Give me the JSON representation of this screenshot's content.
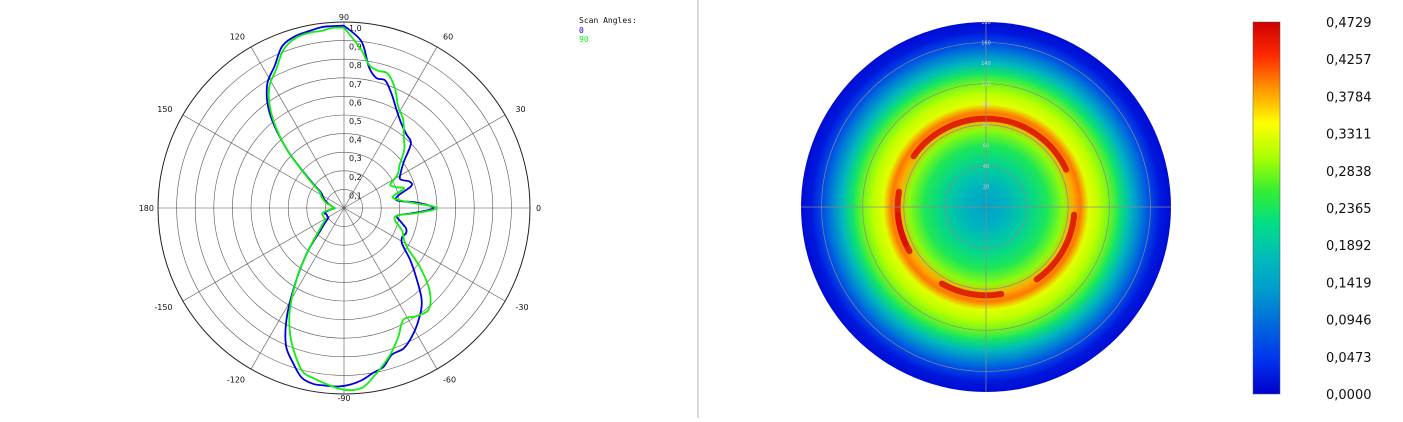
{
  "chart_data": [
    {
      "type": "line",
      "projection": "polar",
      "radial_ticks": [
        "0,1",
        "0,2",
        "0,3",
        "0,4",
        "0,5",
        "0,6",
        "0,7",
        "0,8",
        "0,9",
        "1,0"
      ],
      "rlim": [
        0,
        1
      ],
      "angular_ticks": [
        "0",
        "30",
        "60",
        "90",
        "120",
        "150",
        "180",
        "-150",
        "-120",
        "-90",
        "-60",
        "-30"
      ],
      "grid": true,
      "legend": {
        "title": "Scan Angles:",
        "placement": "top-right"
      },
      "series": [
        {
          "name": "0",
          "color": "#0000dd",
          "angles": [
            90,
            84,
            80,
            76,
            72,
            67,
            62,
            56,
            50,
            44,
            38,
            32,
            27,
            22,
            18,
            13,
            8,
            4,
            0,
            -4,
            -8,
            -13,
            -18,
            -22,
            -27,
            -32,
            -38,
            -44,
            -50,
            -56,
            -62,
            -67,
            -72,
            -76,
            -80,
            -84,
            -88,
            -92,
            -96,
            -100,
            -104,
            -108,
            -113,
            -118,
            -124,
            -130,
            -136,
            -142,
            -148,
            -154,
            -160,
            -166,
            -170,
            -174,
            -178,
            176,
            170,
            164,
            158,
            152,
            146,
            140,
            134,
            128,
            122,
            116,
            111,
            106,
            101,
            97,
            94,
            90
          ],
          "values": [
            0.98,
            0.9,
            0.77,
            0.72,
            0.72,
            0.66,
            0.6,
            0.55,
            0.52,
            0.5,
            0.41,
            0.36,
            0.34,
            0.38,
            0.38,
            0.3,
            0.29,
            0.4,
            0.48,
            0.38,
            0.29,
            0.31,
            0.35,
            0.36,
            0.35,
            0.37,
            0.45,
            0.54,
            0.65,
            0.72,
            0.78,
            0.82,
            0.83,
            0.88,
            0.9,
            0.93,
            0.95,
            0.96,
            0.96,
            0.96,
            0.94,
            0.88,
            0.8,
            0.65,
            0.45,
            0.3,
            0.18,
            0.13,
            0.1,
            0.1,
            0.1,
            0.11,
            0.09,
            0.07,
            0.05,
            0.06,
            0.07,
            0.09,
            0.11,
            0.13,
            0.15,
            0.25,
            0.45,
            0.65,
            0.78,
            0.85,
            0.93,
            0.96,
            0.97,
            0.98,
            0.98,
            0.98
          ]
        },
        {
          "name": "90",
          "color": "#11ee11",
          "angles": [
            90,
            84,
            80,
            76,
            72,
            67,
            62,
            56,
            50,
            44,
            38,
            32,
            27,
            22,
            18,
            13,
            8,
            4,
            0,
            -4,
            -8,
            -13,
            -18,
            -22,
            -27,
            -32,
            -38,
            -44,
            -50,
            -56,
            -62,
            -67,
            -72,
            -76,
            -80,
            -84,
            -88,
            -92,
            -96,
            -100,
            -104,
            -108,
            -113,
            -118,
            -124,
            -130,
            -136,
            -142,
            -148,
            -154,
            -160,
            -166,
            -170,
            -174,
            -178,
            176,
            170,
            164,
            158,
            152,
            146,
            140,
            134,
            128,
            122,
            116,
            111,
            106,
            101,
            97,
            94,
            90
          ],
          "values": [
            0.97,
            0.86,
            0.78,
            0.76,
            0.76,
            0.7,
            0.62,
            0.57,
            0.5,
            0.45,
            0.38,
            0.34,
            0.28,
            0.3,
            0.34,
            0.27,
            0.3,
            0.38,
            0.5,
            0.39,
            0.29,
            0.28,
            0.31,
            0.34,
            0.36,
            0.4,
            0.52,
            0.64,
            0.71,
            0.7,
            0.68,
            0.75,
            0.82,
            0.87,
            0.92,
            0.97,
            0.98,
            0.97,
            0.95,
            0.93,
            0.91,
            0.84,
            0.74,
            0.62,
            0.45,
            0.3,
            0.2,
            0.15,
            0.12,
            0.12,
            0.12,
            0.12,
            0.1,
            0.07,
            0.05,
            0.06,
            0.07,
            0.1,
            0.12,
            0.14,
            0.16,
            0.26,
            0.45,
            0.63,
            0.76,
            0.83,
            0.91,
            0.95,
            0.96,
            0.96,
            0.97,
            0.97
          ]
        }
      ]
    },
    {
      "type": "heatmap",
      "projection": "polar",
      "radial_ticks": [
        "20",
        "40",
        "60",
        "80",
        "100",
        "120",
        "140",
        "160",
        "180"
      ],
      "colorbar": {
        "ticks": [
          "0,4729",
          "0,4257",
          "0,3784",
          "0,3311",
          "0,2838",
          "0,2365",
          "0,1892",
          "0,1419",
          "0,0946",
          "0,0473",
          "0,0000"
        ],
        "range": [
          0,
          0.4729
        ],
        "colors": [
          "#cc0000",
          "#ff2a00",
          "#ff9900",
          "#ffff00",
          "#aaff00",
          "#33ee33",
          "#00dd88",
          "#00bbbb",
          "#0099cc",
          "#0066dd",
          "#0033ee",
          "#0000cc"
        ]
      },
      "radial_profile": {
        "r": [
          0,
          20,
          40,
          60,
          75,
          85,
          92,
          100,
          110,
          120,
          130,
          140,
          150,
          160,
          170,
          180
        ],
        "value": [
          0.14,
          0.16,
          0.2,
          0.24,
          0.29,
          0.38,
          0.4,
          0.33,
          0.31,
          0.28,
          0.23,
          0.17,
          0.11,
          0.06,
          0.02,
          0.01
        ]
      },
      "hot_ring": {
        "r": 86,
        "value": 0.46
      }
    }
  ]
}
